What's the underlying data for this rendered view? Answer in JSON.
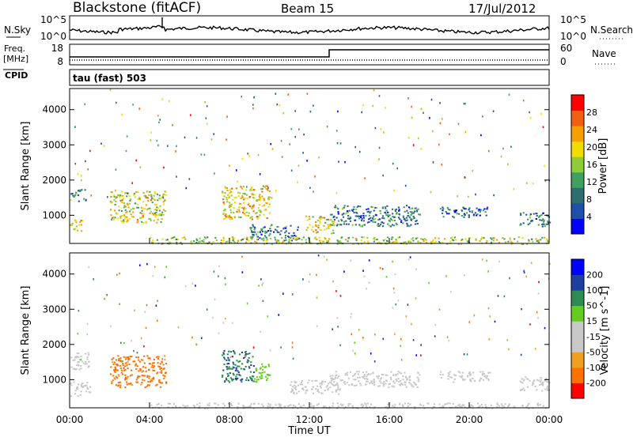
{
  "header": {
    "station": "Blackstone (fitACF)",
    "beam": "Beam 15",
    "date": "17/Jul/2012"
  },
  "noise_panel": {
    "left_label": "N.Sky",
    "right_label": "N.Search",
    "left_ticks": [
      "10^5",
      "10^0"
    ],
    "right_ticks": [
      "10^5",
      "10^0"
    ]
  },
  "freq_panel": {
    "left_label_top": "Freq.",
    "left_label_unit": "[MHz]",
    "cpid_label": "CPID",
    "right_label": "Nave",
    "left_ticks": [
      "18",
      "8"
    ],
    "right_ticks": [
      "60",
      "0"
    ],
    "cpid_text": "tau (fast) 503"
  },
  "colors": {
    "power_scale": [
      "#0000ff",
      "#1f4faa",
      "#2e6e6e",
      "#40a060",
      "#8fcc3a",
      "#f0dc00",
      "#f5a000",
      "#f06010",
      "#ff0000"
    ],
    "velocity_scale": [
      "#ff0000",
      "#ff7000",
      "#f0a020",
      "#c8c8c8",
      "#c8c8c8",
      "#66cc22",
      "#2e8c50",
      "#1f3fa0",
      "#0000ff"
    ],
    "ground_scatter": "#c0c0c0"
  },
  "chart_data": [
    {
      "type": "heatmap",
      "name": "power",
      "xlabel": "",
      "ylabel": "Slant Range [km]",
      "x_ticks": [],
      "y_ticks": [
        "1000",
        "2000",
        "3000",
        "4000"
      ],
      "colorbar": {
        "label": "Power [dB]",
        "ticks": [
          "4",
          "8",
          "12",
          "16",
          "20",
          "24",
          "28"
        ]
      },
      "xlim": [
        0,
        24
      ],
      "ylim": [
        200,
        4600
      ],
      "regions": [
        {
          "x": [
            0.0,
            0.8
          ],
          "y": [
            1400,
            1750
          ],
          "value": 12
        },
        {
          "x": [
            0.0,
            0.7
          ],
          "y": [
            550,
            900
          ],
          "value": 22
        },
        {
          "x": [
            2.0,
            4.8
          ],
          "y": [
            800,
            1700
          ],
          "value": 20
        },
        {
          "x": [
            7.6,
            10.0
          ],
          "y": [
            900,
            1850
          ],
          "value": 22
        },
        {
          "x": [
            9.0,
            11.5
          ],
          "y": [
            300,
            750
          ],
          "value": 10
        },
        {
          "x": [
            11.8,
            13.2
          ],
          "y": [
            500,
            1000
          ],
          "value": 20
        },
        {
          "x": [
            13.0,
            17.5
          ],
          "y": [
            700,
            1300
          ],
          "value": 10
        },
        {
          "x": [
            18.5,
            21.0
          ],
          "y": [
            950,
            1250
          ],
          "value": 8
        },
        {
          "x": [
            22.5,
            24.0
          ],
          "y": [
            700,
            1100
          ],
          "value": 10
        },
        {
          "x": [
            4.0,
            24.0
          ],
          "y": [
            200,
            400
          ],
          "value": 18
        }
      ]
    },
    {
      "type": "heatmap",
      "name": "velocity",
      "xlabel": "Time UT",
      "ylabel": "Slant Range [km]",
      "x_ticks": [
        "00:00",
        "04:00",
        "08:00",
        "12:00",
        "16:00",
        "20:00",
        "00:00"
      ],
      "y_ticks": [
        "1000",
        "2000",
        "3000",
        "4000"
      ],
      "colorbar": {
        "label": "Velocity [m s^-1]",
        "ticks": [
          "-200",
          "-100",
          "-50",
          "-15",
          "15",
          "50",
          "100",
          "200"
        ]
      },
      "xlim": [
        0,
        24
      ],
      "ylim": [
        200,
        4600
      ],
      "regions": [
        {
          "x": [
            0.0,
            1.0
          ],
          "y": [
            1300,
            1800
          ],
          "value": 0
        },
        {
          "x": [
            0.0,
            1.0
          ],
          "y": [
            550,
            950
          ],
          "value": 0
        },
        {
          "x": [
            2.0,
            4.8
          ],
          "y": [
            800,
            1700
          ],
          "value": -180
        },
        {
          "x": [
            7.6,
            9.2
          ],
          "y": [
            950,
            1850
          ],
          "value": 150
        },
        {
          "x": [
            9.2,
            10.0
          ],
          "y": [
            950,
            1500
          ],
          "value": 60
        },
        {
          "x": [
            11.0,
            13.5
          ],
          "y": [
            600,
            1000
          ],
          "value": 0
        },
        {
          "x": [
            13.0,
            17.5
          ],
          "y": [
            800,
            1250
          ],
          "value": 0
        },
        {
          "x": [
            18.5,
            21.0
          ],
          "y": [
            950,
            1250
          ],
          "value": 0
        },
        {
          "x": [
            22.5,
            24.0
          ],
          "y": [
            700,
            1100
          ],
          "value": 0
        },
        {
          "x": [
            4.0,
            24.0
          ],
          "y": [
            200,
            350
          ],
          "value": -60
        }
      ]
    }
  ]
}
